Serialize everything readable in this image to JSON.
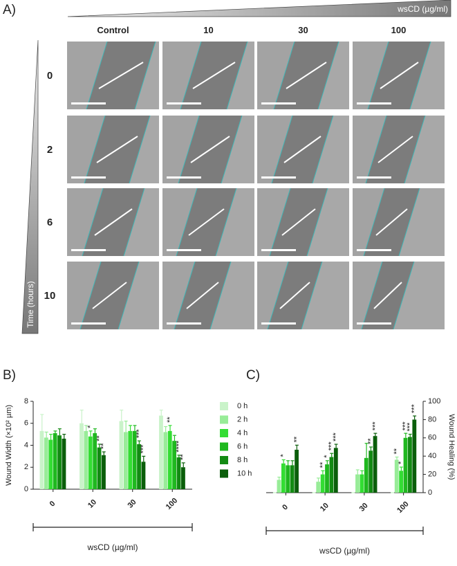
{
  "panel_a": {
    "label": "A)",
    "concentration_label": "wsCD (µg/ml)",
    "columns": [
      "Control",
      "10",
      "30",
      "100"
    ],
    "rows": [
      "0",
      "2",
      "6",
      "10"
    ],
    "time_label": "Time (hours)"
  },
  "chart_data": [
    {
      "type": "bar",
      "panel_label": "B)",
      "ylabel": "Wound Width (×10² µm)",
      "xlabel": "wsCD (µg/ml)",
      "axis_side": "left",
      "categories": [
        "0",
        "10",
        "30",
        "100"
      ],
      "ylim": [
        0,
        8
      ],
      "yticks": [
        0,
        2,
        4,
        6,
        8
      ],
      "series": [
        {
          "name": "0 h",
          "color": "#c9f3c9",
          "values": [
            5.3,
            6.0,
            6.2,
            6.7
          ],
          "errors": [
            1.5,
            1.2,
            1.0,
            0.5
          ],
          "significance": [
            null,
            null,
            null,
            null
          ]
        },
        {
          "name": "2 h",
          "color": "#98ec98",
          "values": [
            4.7,
            5.3,
            5.2,
            5.2
          ],
          "errors": [
            0.5,
            0.5,
            1.0,
            0.5
          ],
          "significance": [
            null,
            null,
            null,
            null
          ]
        },
        {
          "name": "4 h",
          "color": "#33dd33",
          "values": [
            4.5,
            4.8,
            5.3,
            5.3
          ],
          "errors": [
            0.5,
            0.5,
            0.5,
            0.5
          ],
          "significance": [
            null,
            "*",
            null,
            "**"
          ]
        },
        {
          "name": "6 h",
          "color": "#1fb81f",
          "values": [
            5.1,
            5.1,
            5.3,
            4.4
          ],
          "errors": [
            0.2,
            0.4,
            0.5,
            0.5
          ],
          "significance": [
            null,
            null,
            null,
            null
          ]
        },
        {
          "name": "8 h",
          "color": "#138a13",
          "values": [
            4.9,
            3.8,
            4.1,
            2.9
          ],
          "errors": [
            0.6,
            0.3,
            0.3,
            0.2
          ],
          "significance": [
            null,
            "**",
            "***",
            "****"
          ]
        },
        {
          "name": "10 h",
          "color": "#0b5e0b",
          "values": [
            4.6,
            3.1,
            2.5,
            2.0
          ],
          "errors": [
            0.4,
            0.3,
            0.5,
            0.4
          ],
          "significance": [
            null,
            "**",
            "***",
            "**"
          ]
        }
      ]
    },
    {
      "type": "bar",
      "panel_label": "C)",
      "ylabel": "Wound Healing (%)",
      "xlabel": "wsCD (µg/ml)",
      "axis_side": "right",
      "categories": [
        "0",
        "10",
        "30",
        "100"
      ],
      "ylim": [
        0,
        100
      ],
      "yticks": [
        0,
        20,
        40,
        60,
        80,
        100
      ],
      "series": [
        {
          "color": "#c9f3c9",
          "values": [
            0,
            0,
            0,
            0
          ],
          "errors": [
            0,
            0,
            0,
            0
          ],
          "significance": [
            null,
            null,
            null,
            null
          ]
        },
        {
          "color": "#98ec98",
          "values": [
            14,
            12,
            20,
            36
          ],
          "errors": [
            3,
            4,
            5,
            3
          ],
          "significance": [
            null,
            null,
            null,
            "**"
          ]
        },
        {
          "color": "#33dd33",
          "values": [
            32,
            20,
            20,
            24
          ],
          "errors": [
            4,
            4,
            4,
            4
          ],
          "significance": [
            "*",
            "**",
            null,
            "*"
          ]
        },
        {
          "color": "#1fb81f",
          "values": [
            30,
            31,
            38,
            60
          ],
          "errors": [
            5,
            4,
            16,
            5
          ],
          "significance": [
            null,
            "*",
            null,
            "***"
          ]
        },
        {
          "color": "#138a13",
          "values": [
            30,
            39,
            46,
            61
          ],
          "errors": [
            5,
            4,
            4,
            3
          ],
          "significance": [
            null,
            "***",
            "**",
            "***"
          ]
        },
        {
          "color": "#0b5e0b",
          "values": [
            47,
            49,
            62,
            80
          ],
          "errors": [
            5,
            4,
            3,
            4
          ],
          "significance": [
            "**",
            "***",
            "***",
            "***"
          ]
        }
      ]
    }
  ]
}
